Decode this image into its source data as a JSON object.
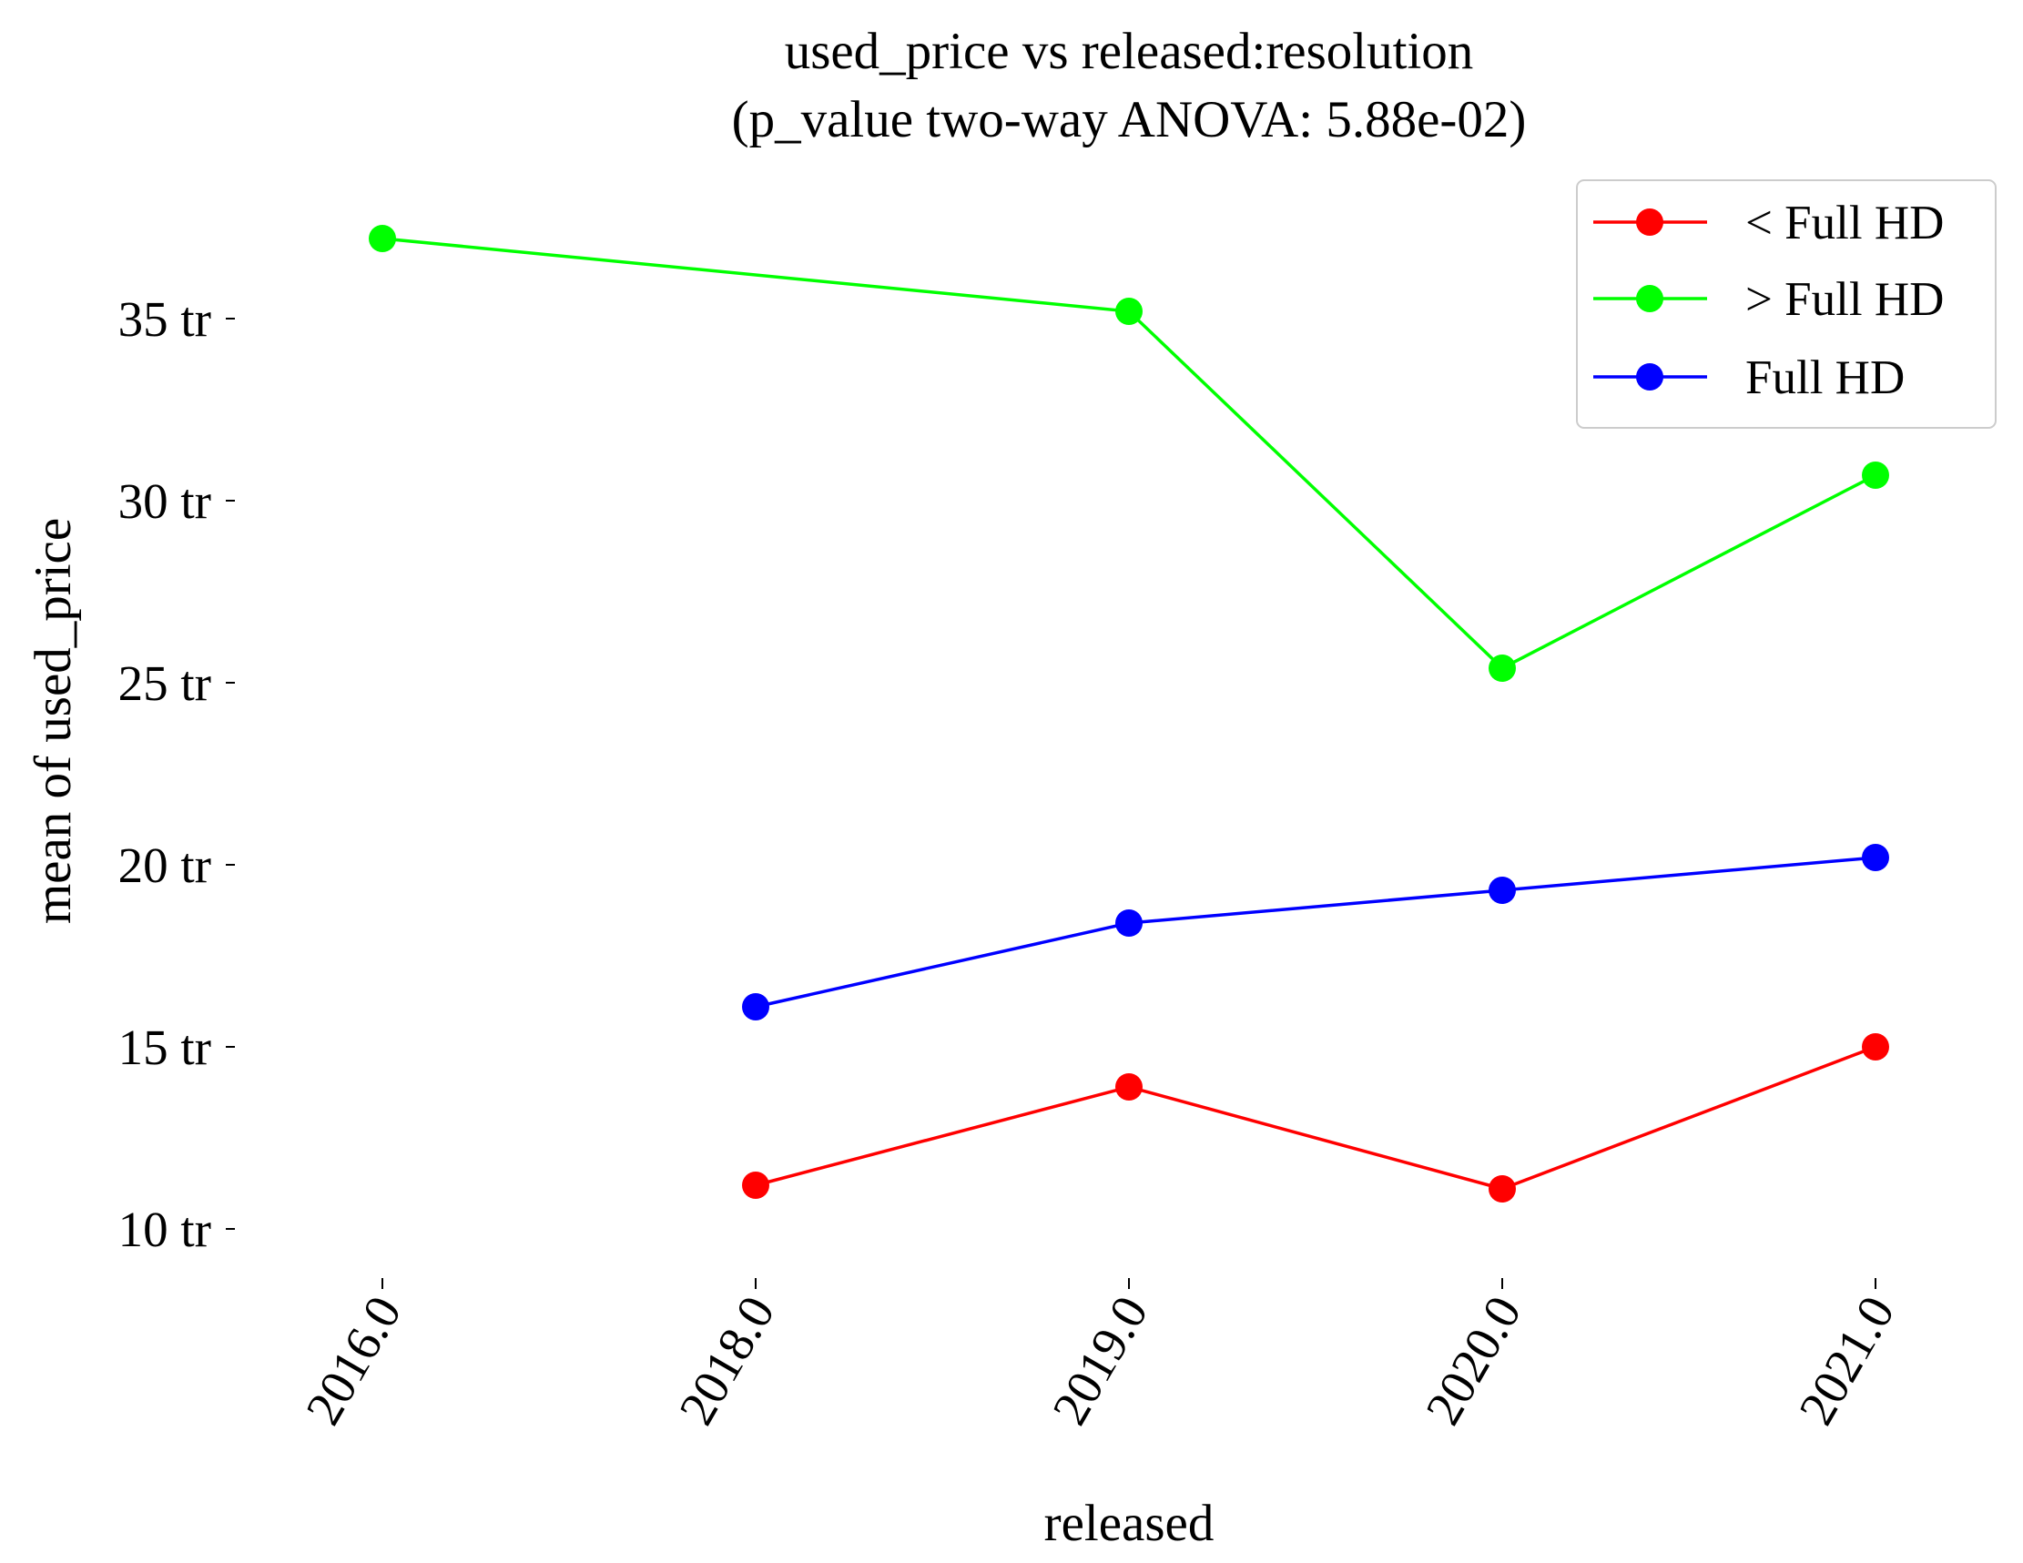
{
  "chart_data": {
    "type": "line",
    "title_line1": "used_price vs released:resolution",
    "title_line2": "(p_value two-way ANOVA: 5.88e-02)",
    "xlabel": "released",
    "ylabel": "mean of used_price",
    "categories": [
      "2016.0",
      "2018.0",
      "2019.0",
      "2020.0",
      "2021.0"
    ],
    "y_ticks": [
      {
        "value": 10,
        "label": "10 tr"
      },
      {
        "value": 15,
        "label": "15 tr"
      },
      {
        "value": 20,
        "label": "20 tr"
      },
      {
        "value": 25,
        "label": "25 tr"
      },
      {
        "value": 30,
        "label": "30 tr"
      },
      {
        "value": 35,
        "label": "35 tr"
      }
    ],
    "ylim": [
      8.5,
      38.8
    ],
    "y_unit": "tr (millions)",
    "grid": false,
    "legend_position": "top-right",
    "series": [
      {
        "name": "< Full HD",
        "color": "#ff0000",
        "values": [
          null,
          11.2,
          13.9,
          11.1,
          15.0
        ]
      },
      {
        "name": "> Full HD",
        "color": "#00ff00",
        "values": [
          37.2,
          null,
          35.2,
          25.4,
          30.7
        ]
      },
      {
        "name": "Full HD",
        "color": "#0000ff",
        "values": [
          null,
          16.1,
          18.4,
          19.3,
          20.2
        ]
      }
    ]
  }
}
